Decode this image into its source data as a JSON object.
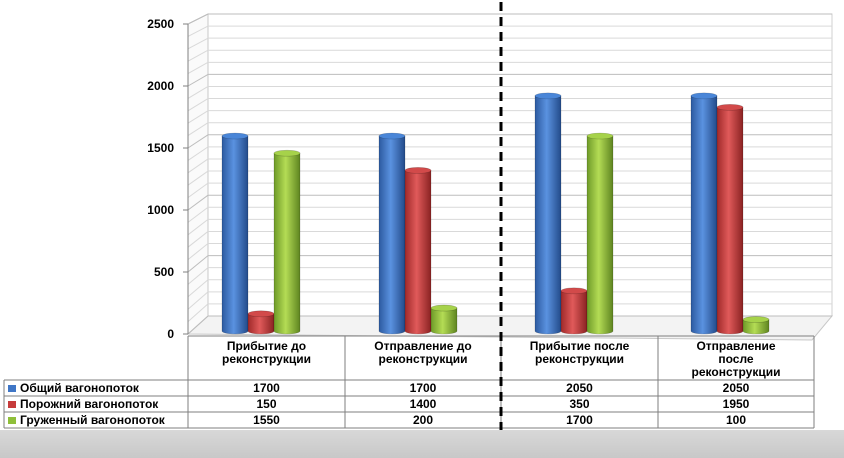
{
  "chart_data": {
    "type": "bar",
    "categories": [
      [
        "Прибытие до",
        "реконструкции"
      ],
      [
        "Отправление до",
        "реконструкции"
      ],
      [
        "Прибытие после",
        "реконструкции"
      ],
      [
        "Отправление",
        "после",
        "реконструкции"
      ]
    ],
    "series": [
      {
        "name": "Общий вагонопоток",
        "color": "#3f76c6",
        "values": [
          1700,
          1700,
          2050,
          2050
        ]
      },
      {
        "name": "Порожний вагонопоток",
        "color": "#c63b3b",
        "values": [
          150,
          1400,
          350,
          1950
        ]
      },
      {
        "name": "Груженный вагонопоток",
        "color": "#8fbf3a",
        "values": [
          1550,
          200,
          1700,
          100
        ]
      }
    ],
    "ylim": [
      0,
      2500
    ],
    "yticks": [
      0,
      500,
      1000,
      1500,
      2000,
      2500
    ],
    "grid": true,
    "legend": "data-table",
    "divider": "dashed line between 2nd and 3rd category"
  }
}
